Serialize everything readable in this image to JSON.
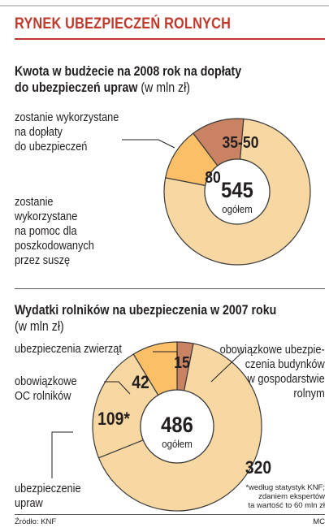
{
  "header": {
    "title": "RYNEK UBEZPIECZEŃ ROLNYCH"
  },
  "colors": {
    "accent": "#c0392b",
    "light": "#f7d7a2",
    "dark": "#c98363",
    "mid": "#fbbf67",
    "outline": "#3a3a3a"
  },
  "chart1": {
    "title_bold_1": "Kwota w budżecie na 2008 rok na dopłaty",
    "title_bold_2": "do ubezpieczeń upraw",
    "title_unit": " (w mln zł)",
    "label_top": [
      "zostanie wykorzystane",
      "na dopłaty",
      "do ubezpieczeń"
    ],
    "label_bottom": [
      "zostanie",
      "wykorzystane",
      "na pomoc dla",
      "poszkodowanych",
      "przez suszę"
    ],
    "total_value": "545",
    "total_label": "ogółem"
  },
  "chart2": {
    "title_bold": "Wydatki rolników na ubezpieczenia w 2007 roku",
    "title_unit": "(w mln zł)",
    "label_animals": "ubezpieczenia zwierząt",
    "label_oc": [
      "obowiązkowe",
      "OC rolników"
    ],
    "label_buildings": [
      "obowiązkowe ubezpie-",
      "czenia budynków",
      "w gospodarstwie",
      "rolnym"
    ],
    "label_crops": [
      "ubezpieczenie",
      "upraw"
    ],
    "total_value": "486",
    "total_label": "ogółem",
    "footnote": [
      "*według statystyk KNF;",
      "zdaniem ekspertów",
      "ta wartość to 60 mln zł"
    ]
  },
  "footer": {
    "source": "Źródło: KNF",
    "author": "MC"
  },
  "chart_data": [
    {
      "type": "pie",
      "title": "Kwota w budżecie na 2008 rok na dopłaty do ubezpieczeń upraw (w mln zł)",
      "total": 545,
      "slices": [
        {
          "label": "zostanie wykorzystane na dopłaty do ubezpieczeń",
          "value": 80,
          "display": "80",
          "color": "#fbbf67"
        },
        {
          "label": "zostanie wykorzystane na pomoc dla poszkodowanych przez suszę",
          "value": 465,
          "display": "",
          "color": "#f7d7a2"
        }
      ],
      "highlight": {
        "display": "35-50",
        "start": 0,
        "value": 42.5,
        "color": "#c98363"
      }
    },
    {
      "type": "pie",
      "title": "Wydatki rolników na ubezpieczenia w 2007 roku (w mln zł)",
      "total": 486,
      "slices": [
        {
          "label": "ubezpieczenia zwierząt",
          "value": 15,
          "display": "15",
          "color": "#c98363"
        },
        {
          "label": "obowiązkowe ubezpieczenia budynków w gospodarstwie rolnym",
          "value": 320,
          "display": "320",
          "color": "#f7d7a2"
        },
        {
          "label": "ubezpieczenie upraw",
          "value": 109,
          "display": "109*",
          "color": "#f7d7a2"
        },
        {
          "label": "obowiązkowe OC rolników",
          "value": 42,
          "display": "42",
          "color": "#fbbf67"
        }
      ]
    }
  ]
}
